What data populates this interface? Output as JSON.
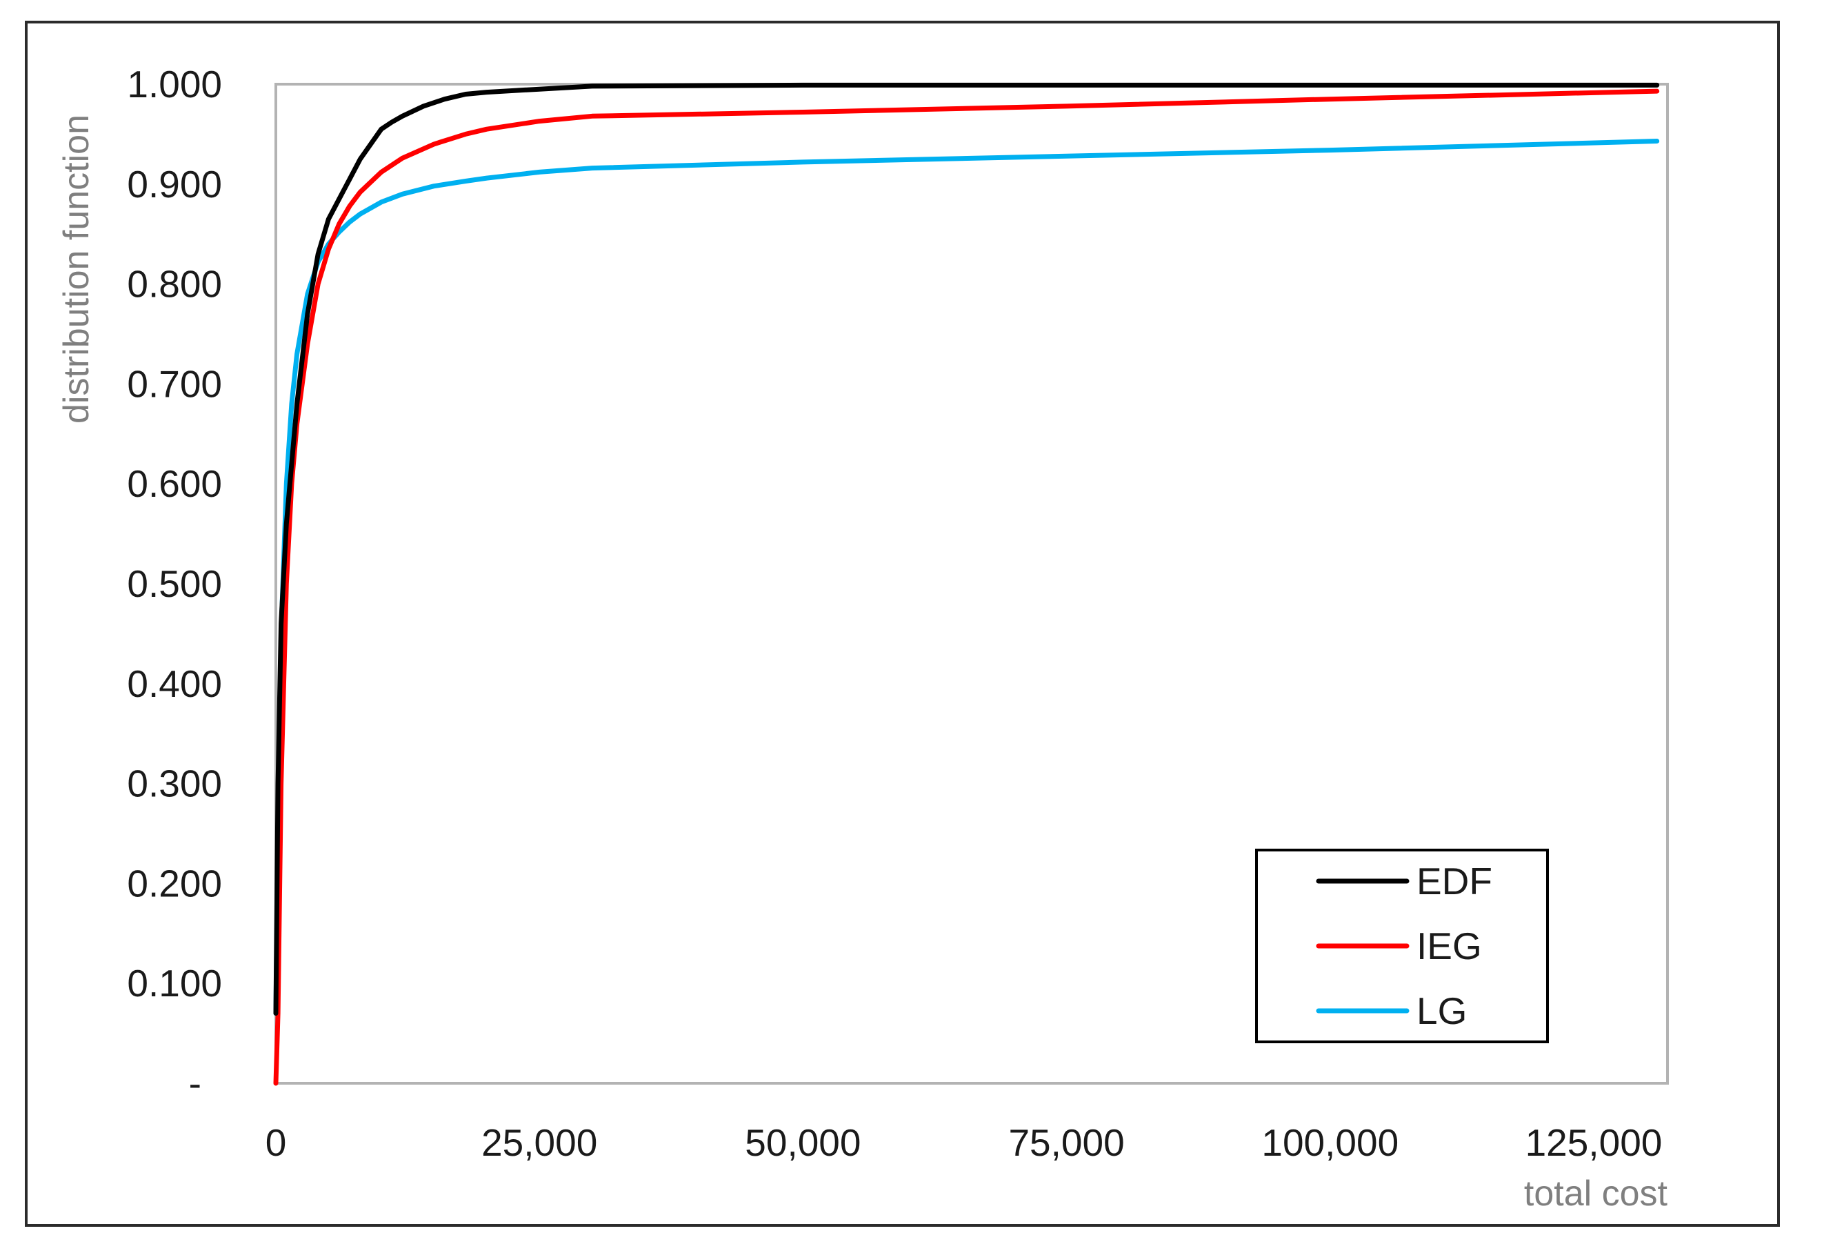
{
  "chart_data": {
    "type": "line",
    "xlabel": "total cost",
    "ylabel": "distribution function",
    "xlim": [
      0,
      132000
    ],
    "ylim": [
      0,
      1
    ],
    "x_ticks": [
      0,
      25000,
      50000,
      75000,
      100000,
      125000
    ],
    "x_tick_labels": [
      "0",
      "25,000",
      "50,000",
      "75,000",
      "100,000",
      "125,000"
    ],
    "y_ticks": [
      0,
      0.1,
      0.2,
      0.3,
      0.4,
      0.5,
      0.6,
      0.7,
      0.8,
      0.9,
      1.0
    ],
    "y_tick_labels": [
      "-",
      "0.100",
      "0.200",
      "0.300",
      "0.400",
      "0.500",
      "0.600",
      "0.700",
      "0.800",
      "0.900",
      "1.000"
    ],
    "grid": false,
    "legend_position": "bottom-right",
    "series": [
      {
        "name": "EDF",
        "color": "#000000",
        "x": [
          0,
          200,
          500,
          1000,
          1500,
          2000,
          3000,
          4000,
          5000,
          6000,
          7000,
          8000,
          9000,
          10000,
          11000,
          12000,
          14000,
          16000,
          18000,
          20000,
          25000,
          30000,
          50000,
          75000,
          100000,
          131000
        ],
        "y": [
          0.07,
          0.3,
          0.46,
          0.56,
          0.62,
          0.68,
          0.77,
          0.83,
          0.865,
          0.885,
          0.905,
          0.925,
          0.94,
          0.955,
          0.962,
          0.968,
          0.978,
          0.985,
          0.99,
          0.992,
          0.995,
          0.998,
          0.999,
          0.999,
          0.999,
          0.999
        ]
      },
      {
        "name": "IEG",
        "color": "#ff0000",
        "x": [
          0,
          200,
          500,
          1000,
          1500,
          2000,
          3000,
          4000,
          5000,
          6000,
          7000,
          8000,
          10000,
          12000,
          15000,
          18000,
          20000,
          25000,
          30000,
          50000,
          75000,
          100000,
          131000
        ],
        "y": [
          0.0,
          0.07,
          0.3,
          0.5,
          0.6,
          0.66,
          0.74,
          0.8,
          0.835,
          0.86,
          0.878,
          0.892,
          0.912,
          0.926,
          0.94,
          0.95,
          0.955,
          0.963,
          0.968,
          0.972,
          0.978,
          0.985,
          0.993
        ]
      },
      {
        "name": "LG",
        "color": "#00b0f0",
        "x": [
          0,
          200,
          500,
          1000,
          1500,
          2000,
          3000,
          4000,
          5000,
          6000,
          7000,
          8000,
          10000,
          12000,
          15000,
          18000,
          20000,
          25000,
          30000,
          50000,
          75000,
          100000,
          131000
        ],
        "y": [
          0.07,
          0.25,
          0.45,
          0.6,
          0.68,
          0.73,
          0.79,
          0.822,
          0.84,
          0.852,
          0.862,
          0.87,
          0.882,
          0.89,
          0.898,
          0.903,
          0.906,
          0.912,
          0.916,
          0.922,
          0.928,
          0.934,
          0.943
        ]
      }
    ]
  }
}
